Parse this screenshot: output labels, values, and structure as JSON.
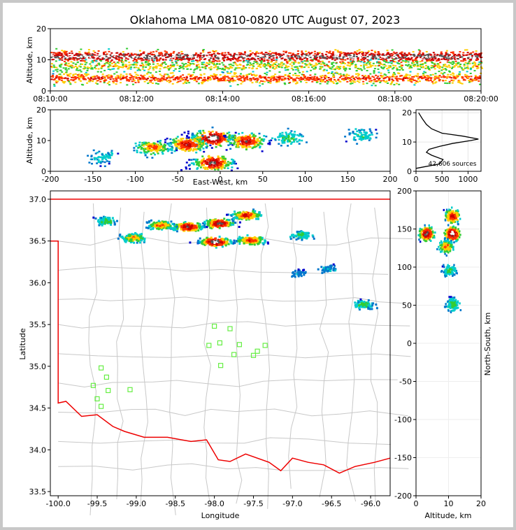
{
  "figure": {
    "title": "Oklahoma LMA 0810-0820 UTC August 07, 2023"
  },
  "chart_data": [
    {
      "panel": "altitude-time",
      "type": "heatmap",
      "ylabel": "Altitude, km",
      "xlabel": "",
      "x_ticks": [
        "08:10:00",
        "08:12:00",
        "08:14:00",
        "08:16:00",
        "08:18:00",
        "08:20:00"
      ],
      "xlim": [
        "08:10:00",
        "08:20:00"
      ],
      "y_ticks": [
        0,
        10,
        20
      ],
      "ylim": [
        0,
        20
      ],
      "density_layers_km": [
        {
          "alt": 11,
          "weight": 1.0
        },
        {
          "alt": 4,
          "weight": 0.7
        },
        {
          "alt": 8,
          "weight": 0.5
        }
      ]
    },
    {
      "panel": "east-west-altitude",
      "type": "heatmap",
      "xlabel": "East-West, km",
      "ylabel": "Altitude, km",
      "x_ticks": [
        -200,
        -150,
        -100,
        -50,
        0,
        50,
        100,
        150,
        200
      ],
      "xlim": [
        -200,
        200
      ],
      "y_ticks": [
        0,
        10,
        20
      ],
      "ylim": [
        0,
        20
      ],
      "cells": [
        {
          "x": -10,
          "alt": 11,
          "weight": 1.0
        },
        {
          "x": -10,
          "alt": 3,
          "weight": 0.9
        },
        {
          "x": -40,
          "alt": 9,
          "weight": 0.8
        },
        {
          "x": 30,
          "alt": 10,
          "weight": 0.8
        },
        {
          "x": -80,
          "alt": 8,
          "weight": 0.6
        },
        {
          "x": 80,
          "alt": 11,
          "weight": 0.35
        },
        {
          "x": 165,
          "alt": 12,
          "weight": 0.3
        },
        {
          "x": -140,
          "alt": 5,
          "weight": 0.25
        }
      ]
    },
    {
      "panel": "altitude-histogram",
      "type": "line",
      "xlabel": "",
      "ylabel": "",
      "annotation": "42,606 sources",
      "x_ticks": [
        0,
        500,
        1000
      ],
      "xlim": [
        0,
        1250
      ],
      "y_ticks": [
        0,
        10,
        20
      ],
      "ylim": [
        0,
        21
      ],
      "points": [
        [
          0,
          1
        ],
        [
          150,
          1.5
        ],
        [
          450,
          2.5
        ],
        [
          520,
          4
        ],
        [
          300,
          5.5
        ],
        [
          200,
          6.5
        ],
        [
          250,
          7.5
        ],
        [
          450,
          8.5
        ],
        [
          700,
          9.5
        ],
        [
          1050,
          10.5
        ],
        [
          1200,
          11
        ],
        [
          900,
          12
        ],
        [
          500,
          13
        ],
        [
          300,
          14.5
        ],
        [
          200,
          16
        ],
        [
          120,
          18
        ],
        [
          50,
          20
        ]
      ]
    },
    {
      "panel": "plan-view",
      "type": "heatmap",
      "xlabel": "Longitude",
      "ylabel": "Latitude",
      "x_ticks": [
        -100.0,
        -99.5,
        -99.0,
        -98.5,
        -98.0,
        -97.5,
        -97.0,
        -96.5,
        -96.0
      ],
      "xlim": [
        -100.1,
        -95.75
      ],
      "y_ticks": [
        33.5,
        34.0,
        34.5,
        35.0,
        35.5,
        36.0,
        36.5,
        37.0
      ],
      "ylim": [
        33.45,
        37.1
      ],
      "cells": [
        {
          "lon": -98.0,
          "lat": 36.5,
          "weight": 1.0
        },
        {
          "lon": -97.95,
          "lat": 36.72,
          "weight": 0.9
        },
        {
          "lon": -98.35,
          "lat": 36.68,
          "weight": 0.85
        },
        {
          "lon": -97.55,
          "lat": 36.52,
          "weight": 0.7
        },
        {
          "lon": -97.6,
          "lat": 36.82,
          "weight": 0.75
        },
        {
          "lon": -98.7,
          "lat": 36.7,
          "weight": 0.6
        },
        {
          "lon": -99.05,
          "lat": 36.55,
          "weight": 0.55
        },
        {
          "lon": -99.4,
          "lat": 36.75,
          "weight": 0.35
        },
        {
          "lon": -96.9,
          "lat": 36.58,
          "weight": 0.35
        },
        {
          "lon": -96.1,
          "lat": 35.75,
          "weight": 0.35
        },
        {
          "lon": -96.55,
          "lat": 36.18,
          "weight": 0.2
        },
        {
          "lon": -96.95,
          "lat": 36.12,
          "weight": 0.15
        }
      ],
      "stations": [
        {
          "lon": -98.0,
          "lat": 35.48
        },
        {
          "lon": -97.8,
          "lat": 35.45
        },
        {
          "lon": -98.07,
          "lat": 35.25
        },
        {
          "lon": -97.93,
          "lat": 35.28
        },
        {
          "lon": -97.68,
          "lat": 35.26
        },
        {
          "lon": -97.35,
          "lat": 35.25
        },
        {
          "lon": -97.75,
          "lat": 35.14
        },
        {
          "lon": -97.5,
          "lat": 35.13
        },
        {
          "lon": -97.45,
          "lat": 35.18
        },
        {
          "lon": -97.92,
          "lat": 35.01
        },
        {
          "lon": -99.45,
          "lat": 34.98
        },
        {
          "lon": -99.38,
          "lat": 34.87
        },
        {
          "lon": -99.55,
          "lat": 34.77
        },
        {
          "lon": -99.36,
          "lat": 34.71
        },
        {
          "lon": -99.08,
          "lat": 34.72
        },
        {
          "lon": -99.5,
          "lat": 34.61
        },
        {
          "lon": -99.45,
          "lat": 34.52
        }
      ]
    },
    {
      "panel": "north-south-altitude",
      "type": "heatmap",
      "xlabel": "Altitude, km",
      "ylabel": "North-South, km",
      "x_ticks": [
        0,
        10,
        20
      ],
      "xlim": [
        0,
        20
      ],
      "y_ticks": [
        200,
        150,
        100,
        50,
        0,
        -50,
        -100,
        -150,
        -200
      ],
      "ylim": [
        -200,
        200
      ],
      "cells": [
        {
          "alt": 11,
          "ns": 145,
          "weight": 1.0
        },
        {
          "alt": 3,
          "ns": 145,
          "weight": 0.9
        },
        {
          "alt": 11,
          "ns": 168,
          "weight": 0.8
        },
        {
          "alt": 9,
          "ns": 128,
          "weight": 0.6
        },
        {
          "alt": 10,
          "ns": 97,
          "weight": 0.35
        },
        {
          "alt": 11,
          "ns": 52,
          "weight": 0.4
        }
      ]
    }
  ]
}
